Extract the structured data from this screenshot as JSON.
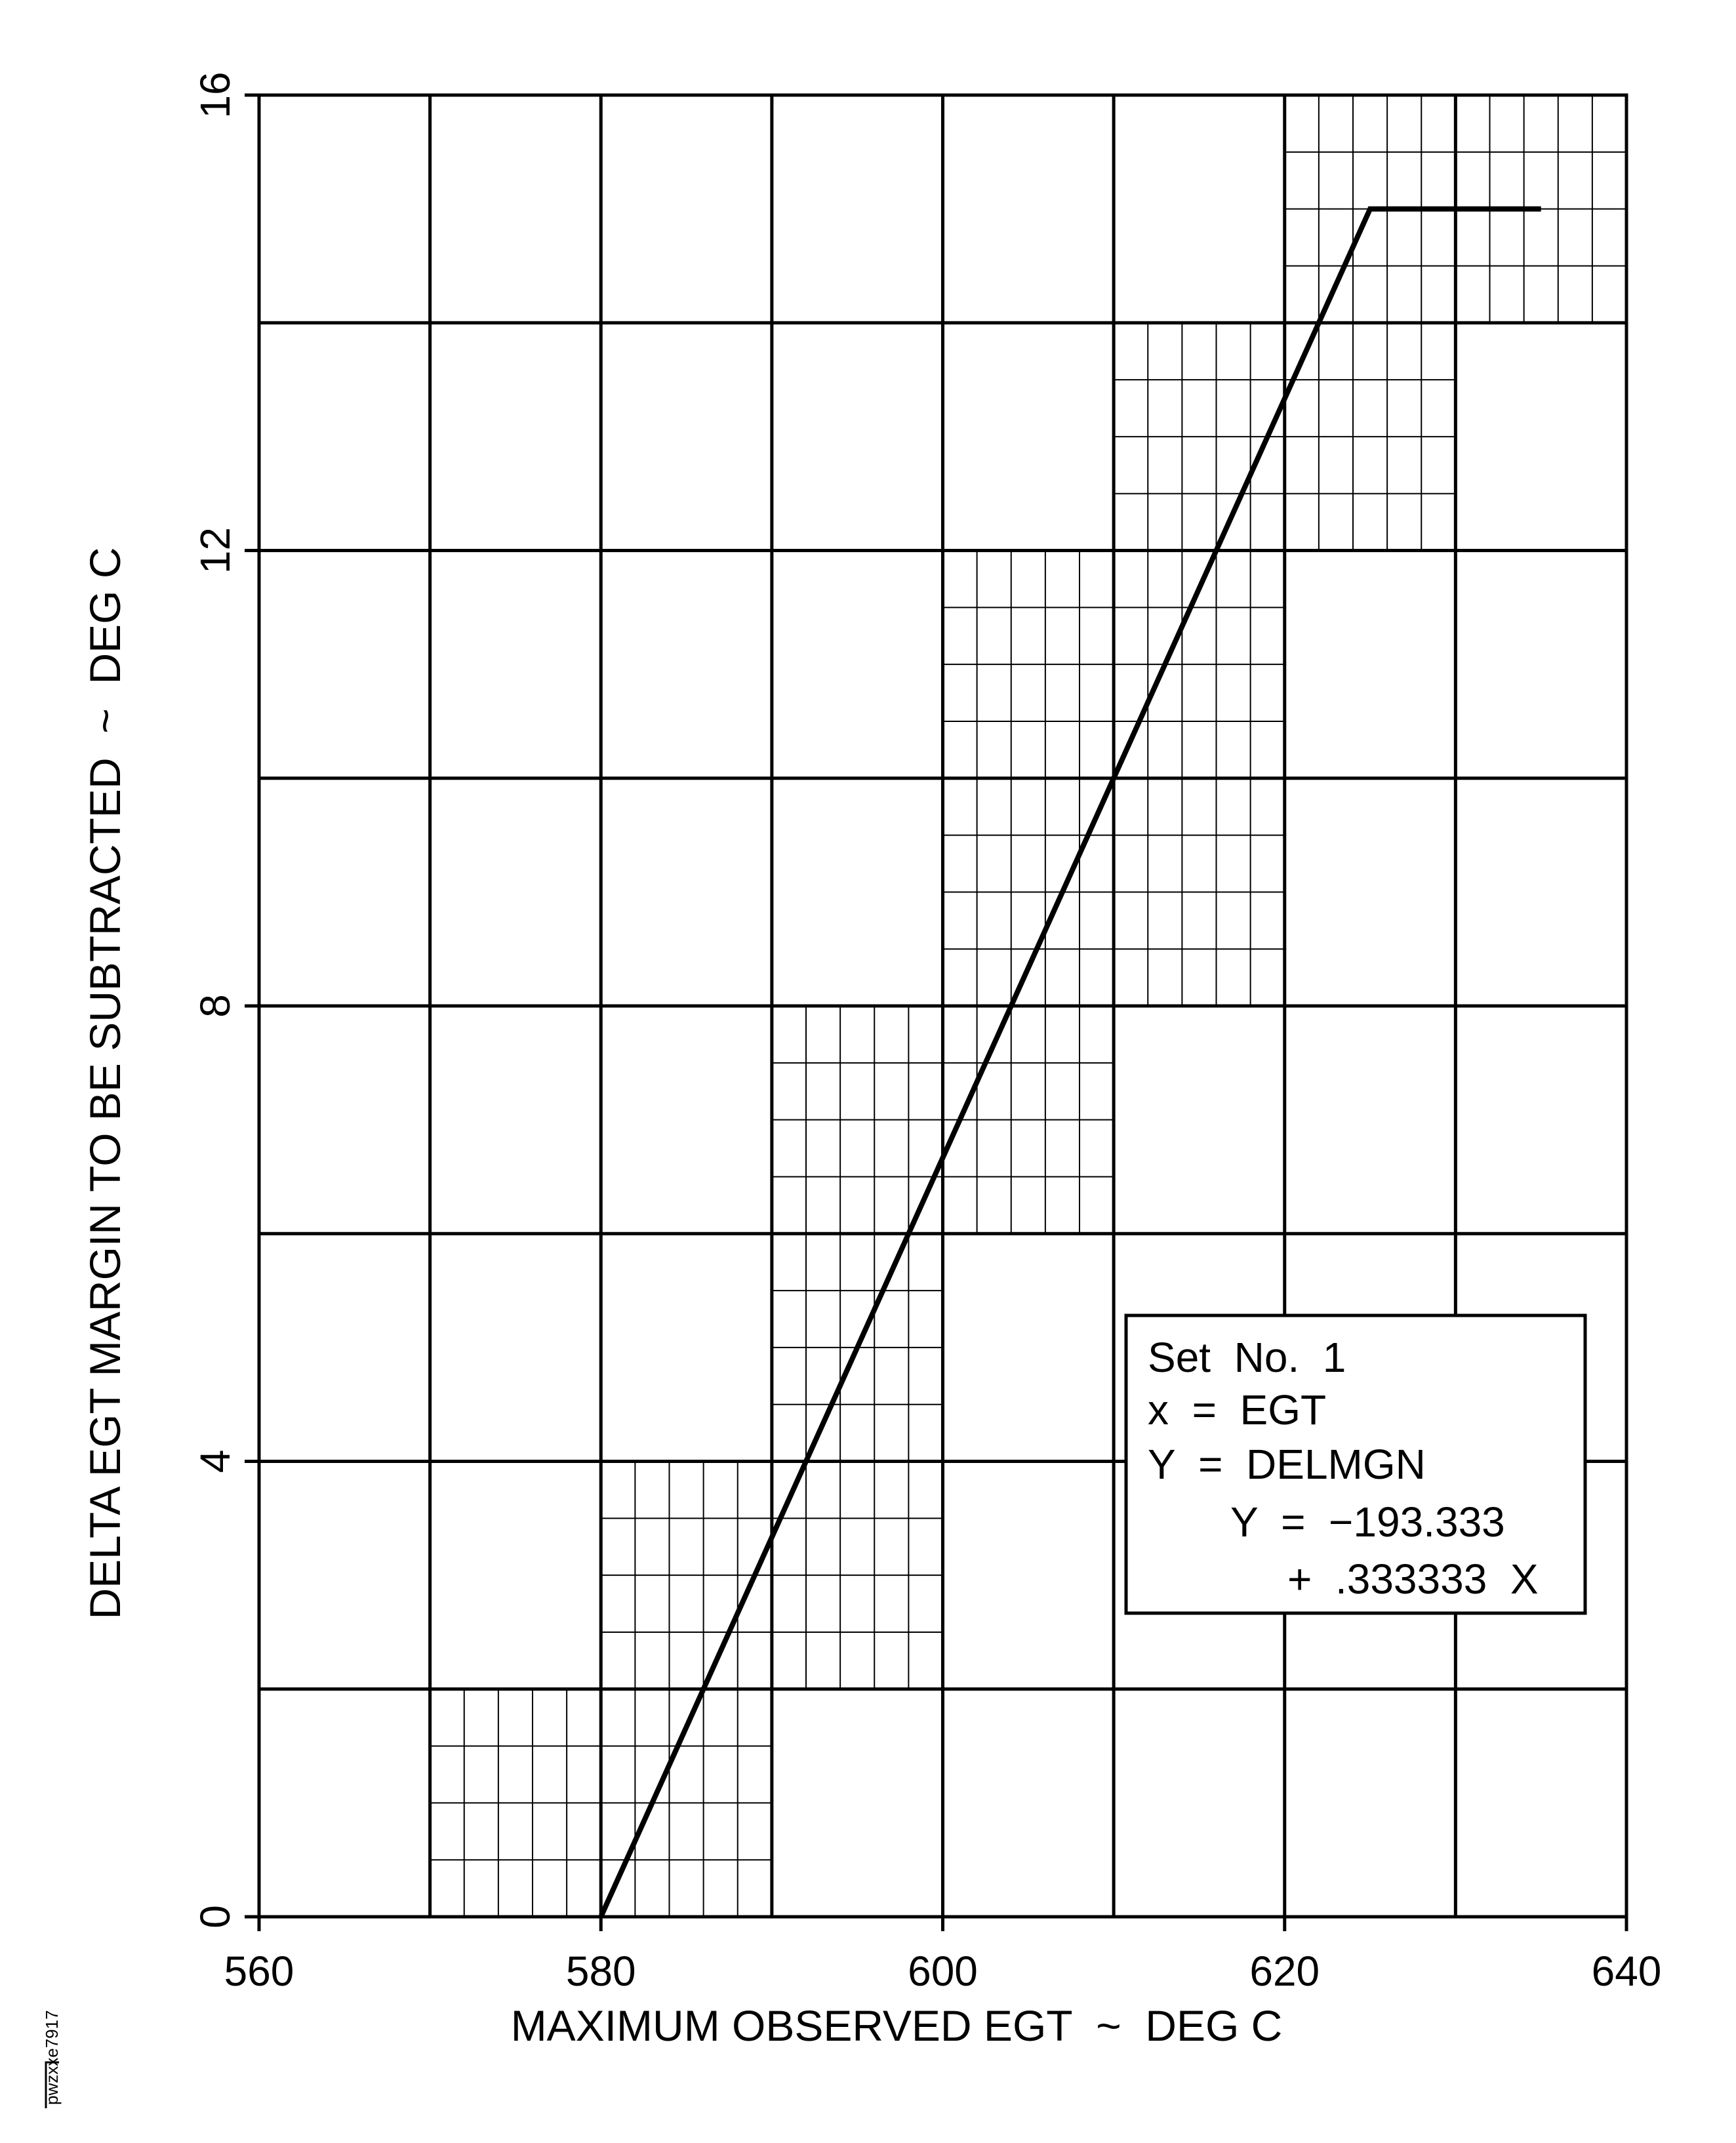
{
  "chart_data": {
    "type": "line",
    "xlabel": "MAXIMUM OBSERVED EGT  ~  DEG C",
    "ylabel": "DELTA EGT MARGIN TO BE SUBTRACTED  ~  DEG C",
    "xlim": [
      560,
      640
    ],
    "ylim": [
      0,
      16
    ],
    "x_ticks": [
      560,
      580,
      600,
      620,
      640
    ],
    "x_tick_labels": [
      "560",
      "580",
      "600",
      "620",
      "640"
    ],
    "y_ticks": [
      0,
      4,
      8,
      12,
      16
    ],
    "y_tick_labels": [
      "0",
      "4",
      "8",
      "12",
      "16"
    ],
    "major_grid": {
      "x_step": 10,
      "y_step": 2
    },
    "fine_grid": {
      "x_step": 2,
      "y_step": 0.5
    },
    "fine_grid_cells": [
      {
        "x": [
          570,
          580
        ],
        "y": [
          0,
          2
        ]
      },
      {
        "x": [
          580,
          590
        ],
        "y": [
          0,
          2
        ]
      },
      {
        "x": [
          580,
          590
        ],
        "y": [
          2,
          4
        ]
      },
      {
        "x": [
          590,
          600
        ],
        "y": [
          2,
          4
        ]
      },
      {
        "x": [
          590,
          600
        ],
        "y": [
          4,
          6
        ]
      },
      {
        "x": [
          590,
          600
        ],
        "y": [
          6,
          8
        ]
      },
      {
        "x": [
          600,
          610
        ],
        "y": [
          6,
          8
        ]
      },
      {
        "x": [
          600,
          610
        ],
        "y": [
          8,
          10
        ]
      },
      {
        "x": [
          600,
          610
        ],
        "y": [
          10,
          12
        ]
      },
      {
        "x": [
          610,
          620
        ],
        "y": [
          8,
          10
        ]
      },
      {
        "x": [
          610,
          620
        ],
        "y": [
          10,
          12
        ]
      },
      {
        "x": [
          610,
          620
        ],
        "y": [
          12,
          14
        ]
      },
      {
        "x": [
          620,
          630
        ],
        "y": [
          12,
          14
        ]
      },
      {
        "x": [
          620,
          630
        ],
        "y": [
          14,
          16
        ]
      },
      {
        "x": [
          630,
          640
        ],
        "y": [
          14,
          16
        ]
      }
    ],
    "series": [
      {
        "x": [
          580,
          625,
          635
        ],
        "y": [
          0,
          15,
          15
        ]
      }
    ],
    "legend_position": "bottom-right",
    "annotation_lines": [
      "Set  No.  1",
      "x  =  EGT",
      "Y  =  DELMGN",
      "Y  =  −193.333",
      "+  .333333  X"
    ],
    "grid": true
  },
  "figure_id": "pwzxxe7917",
  "colors": {
    "ink": "#000000",
    "background": "#ffffff"
  }
}
